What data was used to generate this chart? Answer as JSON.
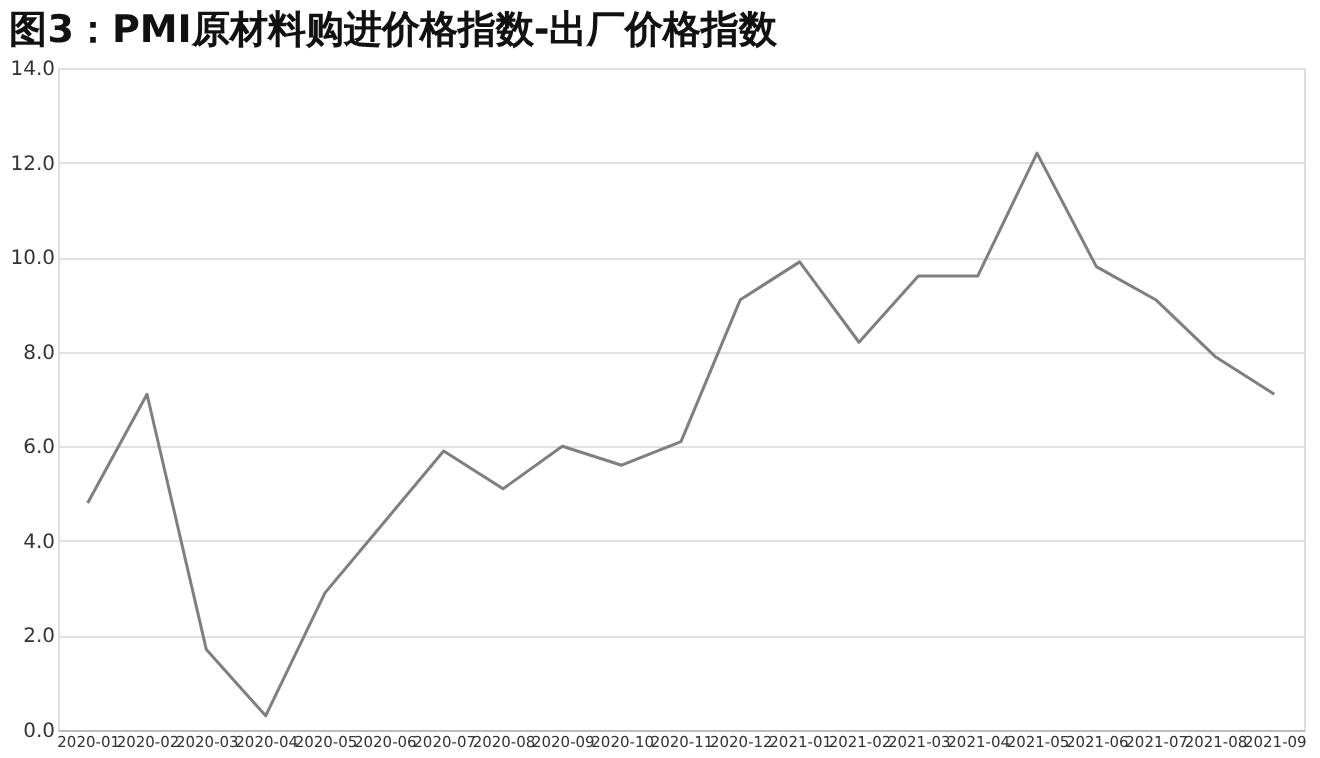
{
  "chart_data": {
    "type": "line",
    "title": "图3：PMI原材料购进价格指数-出厂价格指数",
    "categories": [
      "2020-01",
      "2020-02",
      "2020-03",
      "2020-04",
      "2020-05",
      "2020-06",
      "2020-07",
      "2020-08",
      "2020-09",
      "2020-10",
      "2020-11",
      "2020-12",
      "2021-01",
      "2021-02",
      "2021-03",
      "2021-04",
      "2021-05",
      "2021-06",
      "2021-07",
      "2021-08",
      "2021-09"
    ],
    "series": [
      {
        "color": "#7f7f7f",
        "values": [
          4.8,
          7.1,
          1.7,
          0.3,
          2.9,
          4.4,
          5.9,
          5.1,
          6.0,
          5.6,
          6.1,
          9.1,
          9.9,
          8.2,
          9.6,
          9.6,
          12.2,
          9.8,
          9.1,
          7.9,
          7.1
        ]
      }
    ],
    "ylim": [
      0,
      14
    ],
    "yticks": [
      {
        "value": 0,
        "label": "0.0"
      },
      {
        "value": 2,
        "label": "2.0"
      },
      {
        "value": 4,
        "label": "4.0"
      },
      {
        "value": 6,
        "label": "6.0"
      },
      {
        "value": 8,
        "label": "8.0"
      },
      {
        "value": 10,
        "label": "10.0"
      },
      {
        "value": 12,
        "label": "12.0"
      },
      {
        "value": 14,
        "label": "14.0"
      }
    ],
    "grid": "y",
    "marker": "none",
    "line_style": "solid"
  }
}
